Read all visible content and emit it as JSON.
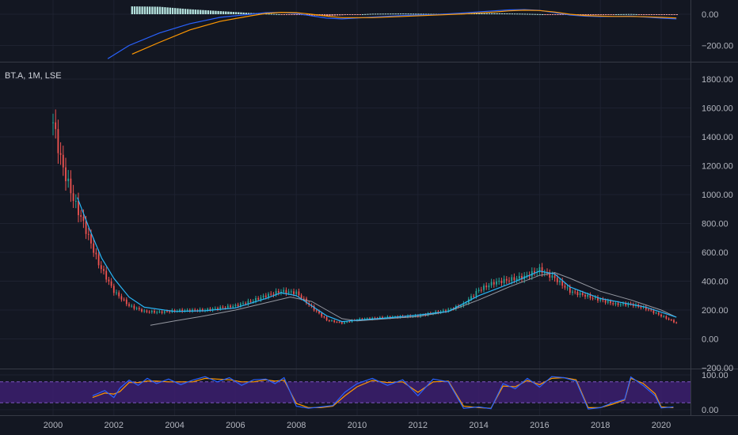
{
  "colors": {
    "background": "#131722",
    "grid": "#1e2230",
    "separator": "#363a45",
    "text": "#b2b5be",
    "candle_up": "#26a69a",
    "candle_down": "#ef5350",
    "ma_fast": "#29b6f6",
    "ma_slow": "#9598a1",
    "macd_line": "#2962ff",
    "signal_line": "#ff9800",
    "hist_up": "#b2dfdb",
    "hist_down": "#ef9a9a",
    "stoch_k": "#2962ff",
    "stoch_d": "#ff9800",
    "stoch_band": "#3c1f6e",
    "stoch_band_edge": "#7e57c2"
  },
  "symbol_label": "BT.A, 1M, LSE",
  "x_axis": {
    "ticks": [
      "2000",
      "2002",
      "2004",
      "2006",
      "2008",
      "2010",
      "2012",
      "2014",
      "2016",
      "2018",
      "2020"
    ]
  },
  "chart_data": [
    {
      "type": "line",
      "panel": "macd",
      "y_ticks": [
        "0.00",
        "−200.00"
      ],
      "ylim": [
        -300,
        40
      ],
      "series": [
        {
          "x": [
            2001.8,
            2002.5,
            2003.5,
            2004.5,
            2005.5,
            2006.5,
            2007.0,
            2007.5,
            2008.0,
            2008.5,
            2009.0,
            2009.5,
            2010.5,
            2011.5,
            2012.5,
            2013.5,
            2014.5,
            2015.0,
            2015.5,
            2016.0,
            2016.5,
            2017.0,
            2017.5,
            2018.0,
            2018.5,
            2019.0,
            2019.5,
            2020.0,
            2020.5
          ],
          "values": [
            -285,
            -200,
            -120,
            -60,
            -20,
            0,
            10,
            12,
            5,
            -10,
            -25,
            -30,
            -18,
            -8,
            -3,
            8,
            22,
            28,
            30,
            25,
            10,
            -5,
            -12,
            -15,
            -14,
            -12,
            -18,
            -25,
            -30
          ]
        },
        {
          "x": [
            2002.6,
            2003.5,
            2004.5,
            2005.5,
            2006.5,
            2007.0,
            2007.5,
            2008.0,
            2008.5,
            2009.0,
            2009.5,
            2010.5,
            2011.5,
            2012.5,
            2013.5,
            2014.5,
            2015.0,
            2015.5,
            2016.0,
            2016.5,
            2017.0,
            2017.5,
            2018.0,
            2018.5,
            2019.0,
            2019.5,
            2020.0,
            2020.5
          ],
          "values": [
            -255,
            -180,
            -100,
            -45,
            -10,
            5,
            12,
            10,
            0,
            -12,
            -22,
            -22,
            -14,
            -6,
            2,
            14,
            22,
            26,
            24,
            14,
            0,
            -8,
            -12,
            -14,
            -14,
            -16,
            -20,
            -24
          ]
        }
      ]
    },
    {
      "type": "candlestick",
      "panel": "price",
      "y_ticks": [
        "1800.00",
        "1600.00",
        "1400.00",
        "1200.00",
        "1000.00",
        "800.00",
        "600.00",
        "400.00",
        "200.00",
        "0.00",
        "−200.00"
      ],
      "ylim": [
        -200,
        1850
      ],
      "anchor_x": [
        2000.0,
        2000.3,
        2000.7,
        2001.0,
        2001.5,
        2002.0,
        2002.5,
        2003.0,
        2003.5,
        2004.0,
        2005.0,
        2006.0,
        2006.5,
        2007.0,
        2007.5,
        2008.0,
        2008.5,
        2009.0,
        2009.5,
        2010.0,
        2011.0,
        2012.0,
        2013.0,
        2013.5,
        2014.0,
        2014.5,
        2015.0,
        2015.5,
        2016.0,
        2016.5,
        2017.0,
        2017.5,
        2018.0,
        2018.5,
        2019.0,
        2019.5,
        2020.0,
        2020.5
      ],
      "anchor_close": [
        1500,
        1200,
        950,
        800,
        520,
        330,
        230,
        190,
        185,
        195,
        200,
        230,
        260,
        300,
        330,
        320,
        220,
        130,
        110,
        135,
        150,
        160,
        200,
        240,
        340,
        390,
        410,
        430,
        480,
        420,
        330,
        300,
        270,
        240,
        240,
        210,
        160,
        110
      ],
      "ma_fast": {
        "x": [
          2000.8,
          2001.2,
          2001.6,
          2002.0,
          2002.5,
          2003.0,
          2004.0,
          2005.0,
          2006.0,
          2007.0,
          2007.5,
          2008.0,
          2008.5,
          2009.0,
          2009.5,
          2010.0,
          2011.0,
          2012.0,
          2013.0,
          2014.0,
          2015.0,
          2016.0,
          2016.5,
          2017.0,
          2018.0,
          2019.0,
          2019.5,
          2020.0,
          2020.5
        ],
        "values": [
          980,
          760,
          560,
          420,
          290,
          220,
          190,
          195,
          215,
          280,
          320,
          300,
          230,
          160,
          120,
          130,
          145,
          165,
          190,
          300,
          380,
          470,
          450,
          360,
          280,
          240,
          220,
          185,
          150
        ]
      },
      "ma_slow": {
        "x": [
          2003.2,
          2004.0,
          2005.0,
          2006.0,
          2007.0,
          2007.8,
          2008.5,
          2009.0,
          2009.5,
          2010.0,
          2011.0,
          2012.0,
          2013.0,
          2014.0,
          2015.0,
          2016.0,
          2016.5,
          2017.0,
          2018.0,
          2019.0,
          2020.0,
          2020.5
        ],
        "values": [
          95,
          125,
          160,
          200,
          250,
          290,
          260,
          200,
          140,
          125,
          140,
          155,
          190,
          270,
          360,
          440,
          460,
          420,
          330,
          270,
          200,
          150
        ]
      }
    },
    {
      "type": "line",
      "panel": "stochastic",
      "y_ticks": [
        "100.00",
        "0.00"
      ],
      "ylim": [
        -8,
        110
      ],
      "band": [
        20,
        80
      ],
      "series": [
        {
          "x": [
            2001.3,
            2001.7,
            2002.0,
            2002.2,
            2002.5,
            2002.8,
            2003.1,
            2003.4,
            2003.8,
            2004.2,
            2004.6,
            2005.0,
            2005.4,
            2005.8,
            2006.2,
            2006.6,
            2007.0,
            2007.3,
            2007.6,
            2008.0,
            2008.4,
            2008.8,
            2009.2,
            2009.6,
            2010.0,
            2010.5,
            2011.0,
            2011.5,
            2012.0,
            2012.5,
            2013.0,
            2013.5,
            2014.0,
            2014.4,
            2014.8,
            2015.2,
            2015.6,
            2016.0,
            2016.4,
            2016.8,
            2017.2,
            2017.6,
            2018.0,
            2018.4,
            2018.8,
            2019.0,
            2019.4,
            2019.8,
            2020.0,
            2020.4
          ],
          "values": [
            40,
            55,
            35,
            62,
            85,
            70,
            90,
            75,
            88,
            72,
            85,
            95,
            80,
            92,
            70,
            86,
            88,
            75,
            92,
            10,
            4,
            8,
            12,
            50,
            75,
            90,
            70,
            86,
            40,
            88,
            80,
            4,
            8,
            3,
            75,
            60,
            90,
            65,
            95,
            92,
            82,
            2,
            6,
            20,
            30,
            94,
            70,
            40,
            5,
            8
          ]
        },
        {
          "x": [
            2001.3,
            2001.7,
            2002.0,
            2002.2,
            2002.5,
            2002.8,
            2003.1,
            2003.4,
            2003.8,
            2004.2,
            2004.6,
            2005.0,
            2005.4,
            2005.8,
            2006.2,
            2006.6,
            2007.0,
            2007.3,
            2007.6,
            2008.0,
            2008.4,
            2008.8,
            2009.2,
            2009.6,
            2010.0,
            2010.5,
            2011.0,
            2011.5,
            2012.0,
            2012.5,
            2013.0,
            2013.5,
            2014.0,
            2014.4,
            2014.8,
            2015.2,
            2015.6,
            2016.0,
            2016.4,
            2016.8,
            2017.2,
            2017.6,
            2018.0,
            2018.4,
            2018.8,
            2019.0,
            2019.4,
            2019.8,
            2020.0,
            2020.4
          ],
          "values": [
            35,
            48,
            45,
            52,
            78,
            78,
            82,
            82,
            80,
            80,
            80,
            90,
            88,
            86,
            80,
            80,
            86,
            82,
            85,
            18,
            6,
            6,
            10,
            40,
            66,
            84,
            78,
            80,
            50,
            80,
            82,
            10,
            6,
            4,
            68,
            66,
            84,
            72,
            90,
            92,
            86,
            6,
            6,
            16,
            28,
            90,
            76,
            46,
            8,
            6
          ]
        }
      ]
    }
  ]
}
